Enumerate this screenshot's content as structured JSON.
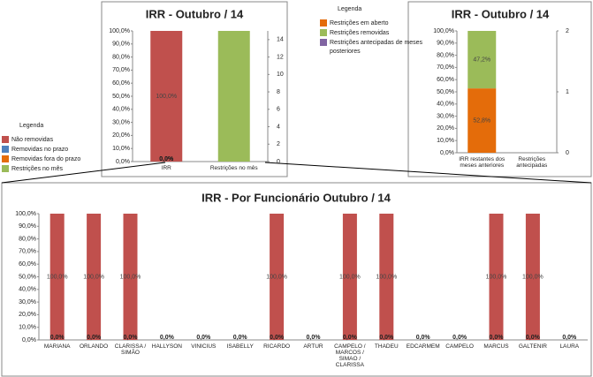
{
  "chart_data": [
    {
      "type": "bar",
      "title": "IRR - Outubro / 14",
      "legend_title": "Legenda",
      "categories": [
        "IRR",
        "Restrições no mês"
      ],
      "series": [
        {
          "name": "Não removidas",
          "color": "#c0504d",
          "values": [
            100,
            null
          ],
          "value_labels": [
            "100,0%",
            null
          ]
        },
        {
          "name": "Removidas no prazo",
          "color": "#4f81bd",
          "values": [
            0,
            null
          ],
          "value_labels": [
            "0,0%",
            null
          ]
        },
        {
          "name": "Removidas fora do prazo",
          "color": "#e46c0a",
          "values": [
            0,
            null
          ],
          "value_labels": [
            "0,0%",
            null
          ]
        },
        {
          "name": "Restrições no mês",
          "color": "#9bbb59",
          "axis": "y2",
          "values": [
            null,
            15
          ]
        }
      ],
      "ylim": [
        0,
        100
      ],
      "yticks": [
        {
          "value": 0,
          "label": "0,0%"
        },
        {
          "value": 10,
          "label": "10,0%"
        },
        {
          "value": 20,
          "label": "20,0%"
        },
        {
          "value": 30,
          "label": "30,0%"
        },
        {
          "value": 40,
          "label": "40,0%"
        },
        {
          "value": 50,
          "label": "50,0%"
        },
        {
          "value": 60,
          "label": "60,0%"
        },
        {
          "value": 70,
          "label": "70,0%"
        },
        {
          "value": 80,
          "label": "80,0%"
        },
        {
          "value": 90,
          "label": "90,0%"
        },
        {
          "value": 100,
          "label": "100,0%"
        }
      ],
      "y2lim": [
        0,
        15
      ],
      "y2ticks": [
        0,
        2,
        4,
        6,
        8,
        10,
        12,
        14
      ]
    },
    {
      "type": "bar",
      "title": "IRR - Outubro / 14",
      "legend_title": "Legenda",
      "categories": [
        "IRR restantes dos meses anteriores",
        "Restrições antecipadas"
      ],
      "series": [
        {
          "name": "Restrições em aberto",
          "color": "#e46c0a",
          "values": [
            52.8,
            null
          ],
          "value_labels": [
            "52,8%",
            null
          ]
        },
        {
          "name": "Restrições removidas",
          "color": "#9bbb59",
          "values": [
            47.2,
            null
          ],
          "value_labels": [
            "47,2%",
            null
          ]
        },
        {
          "name": "Restrições antecipadas de meses posteriores",
          "color": "#8064a2",
          "axis": "y2",
          "values": [
            null,
            0
          ]
        }
      ],
      "ylim": [
        0,
        100
      ],
      "yticks": [
        {
          "value": 0,
          "label": "0,0%"
        },
        {
          "value": 10,
          "label": "10,0%"
        },
        {
          "value": 20,
          "label": "20,0%"
        },
        {
          "value": 30,
          "label": "30,0%"
        },
        {
          "value": 40,
          "label": "40,0%"
        },
        {
          "value": 50,
          "label": "50,0%"
        },
        {
          "value": 60,
          "label": "60,0%"
        },
        {
          "value": 70,
          "label": "70,0%"
        },
        {
          "value": 80,
          "label": "80,0%"
        },
        {
          "value": 90,
          "label": "90,0%"
        },
        {
          "value": 100,
          "label": "100,0%"
        }
      ],
      "y2lim": [
        0,
        2
      ],
      "y2ticks": [
        0,
        1,
        2
      ]
    },
    {
      "type": "bar",
      "title": "IRR - Por Funcionário Outubro / 14",
      "categories": [
        "MARIANA",
        "ORLANDO",
        "CLARISSA / SIMÃO",
        "HALLYSON",
        "VINICIUS",
        "ISABELLY",
        "RICARDO",
        "ARTUR",
        "CAMPELO / MARCOS / SIMAO / CLARISSA",
        "THADEU",
        "EDCARMEM",
        "CAMPELO",
        "MARCUS",
        "GALTENIR",
        "LAURA"
      ],
      "series": [
        {
          "name": "Não removidas",
          "color": "#c0504d",
          "values": [
            100,
            100,
            100,
            0,
            0,
            0,
            100,
            0,
            100,
            100,
            0,
            0,
            100,
            100,
            0
          ],
          "value_labels": [
            "100,0%",
            "100,0%",
            "100,0%",
            "0,0%",
            "0,0%",
            "0,0%",
            "100,0%",
            "0,0%",
            "100,0%",
            "100,0%",
            "0,0%",
            "0,0%",
            "100,0%",
            "100,0%",
            "0,0%"
          ]
        },
        {
          "name": "Removidas no prazo",
          "color": "#4f81bd",
          "values": [
            0,
            0,
            0,
            null,
            null,
            null,
            0,
            null,
            0,
            0,
            null,
            null,
            0,
            0,
            null
          ],
          "value_labels": [
            "0,0%",
            "0,0%",
            "0,0%",
            null,
            null,
            null,
            "0,0%",
            null,
            "0,0%",
            "0,0%",
            null,
            null,
            "0,0%",
            "0,0%",
            null
          ]
        }
      ],
      "ylim": [
        0,
        100
      ],
      "yticks": [
        {
          "value": 0,
          "label": "0,0%"
        },
        {
          "value": 10,
          "label": "10,0%"
        },
        {
          "value": 20,
          "label": "20,0%"
        },
        {
          "value": 30,
          "label": "30,0%"
        },
        {
          "value": 40,
          "label": "40,0%"
        },
        {
          "value": 50,
          "label": "50,0%"
        },
        {
          "value": 60,
          "label": "60,0%"
        },
        {
          "value": 70,
          "label": "70,0%"
        },
        {
          "value": 80,
          "label": "80,0%"
        },
        {
          "value": 90,
          "label": "90,0%"
        },
        {
          "value": 100,
          "label": "100,0%"
        }
      ]
    }
  ]
}
